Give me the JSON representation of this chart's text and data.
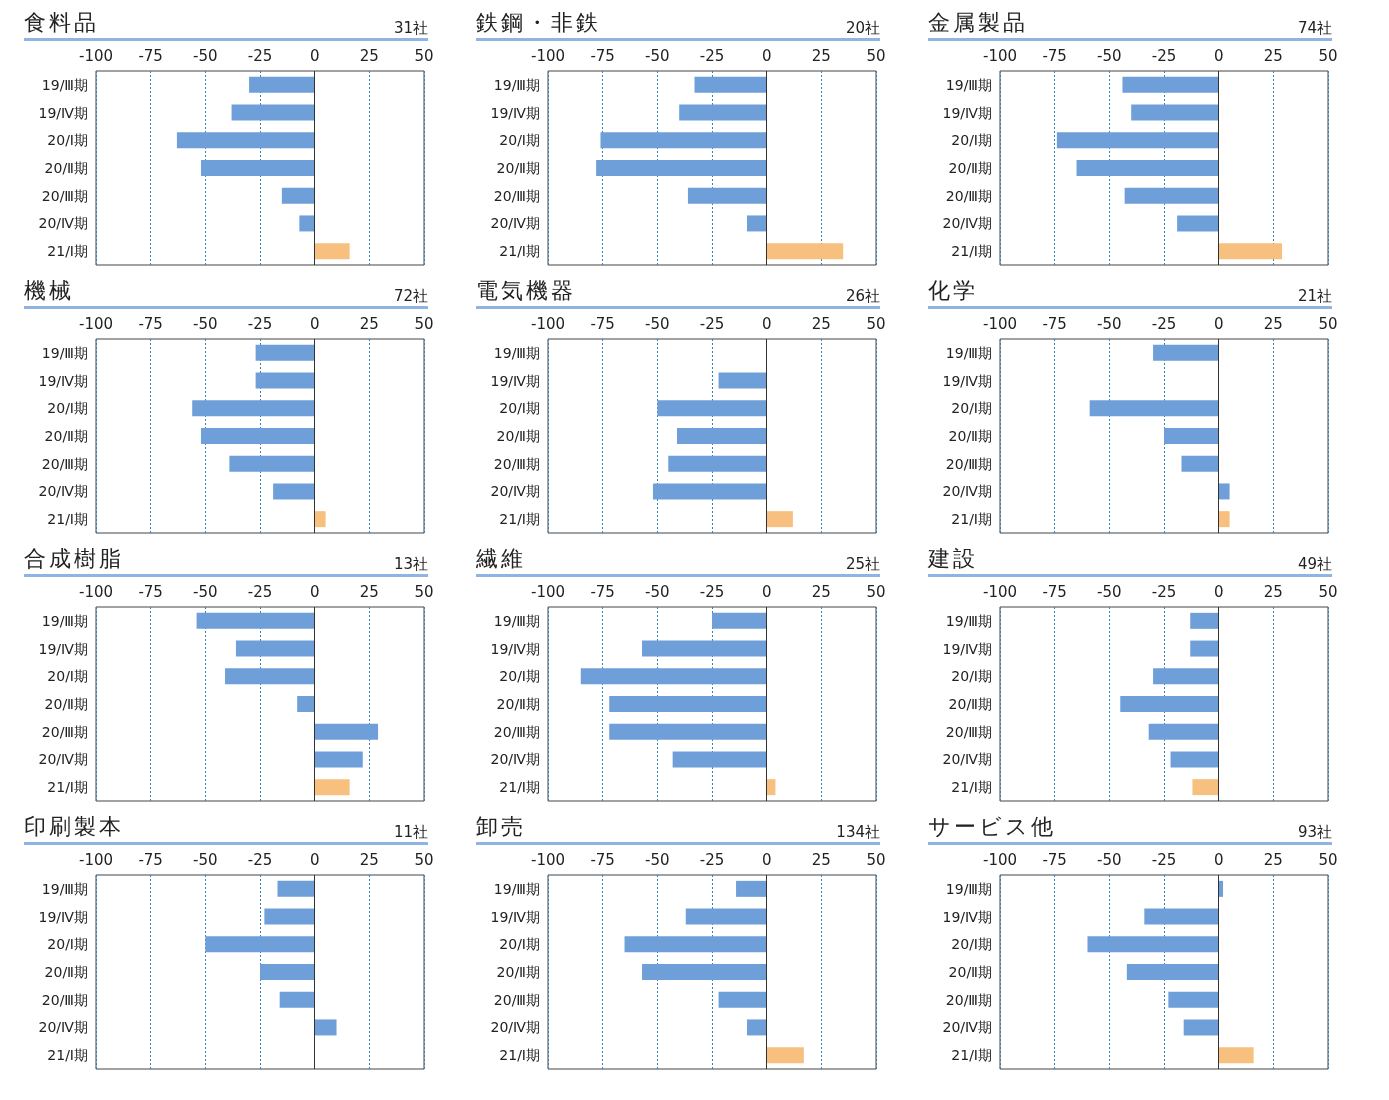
{
  "chart_data": [
    {
      "type": "bar",
      "orientation": "horizontal",
      "title": "食料品",
      "subtitle": "31社",
      "categories": [
        "19/Ⅲ期",
        "19/Ⅳ期",
        "20/Ⅰ期",
        "20/Ⅱ期",
        "20/Ⅲ期",
        "20/Ⅳ期",
        "21/Ⅰ期"
      ],
      "values": [
        -30,
        -38,
        -63,
        -52,
        -15,
        -7,
        16
      ],
      "colors": [
        "#6f9fd8",
        "#6f9fd8",
        "#6f9fd8",
        "#6f9fd8",
        "#6f9fd8",
        "#6f9fd8",
        "#f7c07f"
      ],
      "xlim": [
        -100,
        50
      ],
      "xticks": [
        -100,
        -75,
        -50,
        -25,
        0,
        25,
        50
      ],
      "grid": "x",
      "ref_lines": [
        {
          "axis": "x",
          "value": 0,
          "color": "#333333"
        }
      ]
    },
    {
      "type": "bar",
      "orientation": "horizontal",
      "title": "鉄鋼・非鉄",
      "subtitle": "20社",
      "categories": [
        "19/Ⅲ期",
        "19/Ⅳ期",
        "20/Ⅰ期",
        "20/Ⅱ期",
        "20/Ⅲ期",
        "20/Ⅳ期",
        "21/Ⅰ期"
      ],
      "values": [
        -33,
        -40,
        -76,
        -78,
        -36,
        -9,
        35
      ],
      "colors": [
        "#6f9fd8",
        "#6f9fd8",
        "#6f9fd8",
        "#6f9fd8",
        "#6f9fd8",
        "#6f9fd8",
        "#f7c07f"
      ],
      "xlim": [
        -100,
        50
      ],
      "xticks": [
        -100,
        -75,
        -50,
        -25,
        0,
        25,
        50
      ],
      "grid": "x",
      "ref_lines": [
        {
          "axis": "x",
          "value": 0,
          "color": "#333333"
        }
      ]
    },
    {
      "type": "bar",
      "orientation": "horizontal",
      "title": "金属製品",
      "subtitle": "74社",
      "categories": [
        "19/Ⅲ期",
        "19/Ⅳ期",
        "20/Ⅰ期",
        "20/Ⅱ期",
        "20/Ⅲ期",
        "20/Ⅳ期",
        "21/Ⅰ期"
      ],
      "values": [
        -44,
        -40,
        -74,
        -65,
        -43,
        -19,
        29
      ],
      "colors": [
        "#6f9fd8",
        "#6f9fd8",
        "#6f9fd8",
        "#6f9fd8",
        "#6f9fd8",
        "#6f9fd8",
        "#f7c07f"
      ],
      "xlim": [
        -100,
        50
      ],
      "xticks": [
        -100,
        -75,
        -50,
        -25,
        0,
        25,
        50
      ],
      "grid": "x",
      "ref_lines": [
        {
          "axis": "x",
          "value": 0,
          "color": "#333333"
        }
      ]
    },
    {
      "type": "bar",
      "orientation": "horizontal",
      "title": "機械",
      "subtitle": "72社",
      "categories": [
        "19/Ⅲ期",
        "19/Ⅳ期",
        "20/Ⅰ期",
        "20/Ⅱ期",
        "20/Ⅲ期",
        "20/Ⅳ期",
        "21/Ⅰ期"
      ],
      "values": [
        -27,
        -27,
        -56,
        -52,
        -39,
        -19,
        5
      ],
      "colors": [
        "#6f9fd8",
        "#6f9fd8",
        "#6f9fd8",
        "#6f9fd8",
        "#6f9fd8",
        "#6f9fd8",
        "#f7c07f"
      ],
      "xlim": [
        -100,
        50
      ],
      "xticks": [
        -100,
        -75,
        -50,
        -25,
        0,
        25,
        50
      ],
      "grid": "x",
      "ref_lines": [
        {
          "axis": "x",
          "value": 0,
          "color": "#333333"
        }
      ]
    },
    {
      "type": "bar",
      "orientation": "horizontal",
      "title": "電気機器",
      "subtitle": "26社",
      "categories": [
        "19/Ⅲ期",
        "19/Ⅳ期",
        "20/Ⅰ期",
        "20/Ⅱ期",
        "20/Ⅲ期",
        "20/Ⅳ期",
        "21/Ⅰ期"
      ],
      "values": [
        0,
        -22,
        -50,
        -41,
        -45,
        -52,
        12
      ],
      "colors": [
        "#6f9fd8",
        "#6f9fd8",
        "#6f9fd8",
        "#6f9fd8",
        "#6f9fd8",
        "#6f9fd8",
        "#f7c07f"
      ],
      "xlim": [
        -100,
        50
      ],
      "xticks": [
        -100,
        -75,
        -50,
        -25,
        0,
        25,
        50
      ],
      "grid": "x",
      "ref_lines": [
        {
          "axis": "x",
          "value": 0,
          "color": "#333333"
        }
      ]
    },
    {
      "type": "bar",
      "orientation": "horizontal",
      "title": "化学",
      "subtitle": "21社",
      "categories": [
        "19/Ⅲ期",
        "19/Ⅳ期",
        "20/Ⅰ期",
        "20/Ⅱ期",
        "20/Ⅲ期",
        "20/Ⅳ期",
        "21/Ⅰ期"
      ],
      "values": [
        -30,
        0,
        -59,
        -25,
        -17,
        5,
        5
      ],
      "colors": [
        "#6f9fd8",
        "#6f9fd8",
        "#6f9fd8",
        "#6f9fd8",
        "#6f9fd8",
        "#6f9fd8",
        "#f7c07f"
      ],
      "xlim": [
        -100,
        50
      ],
      "xticks": [
        -100,
        -75,
        -50,
        -25,
        0,
        25,
        50
      ],
      "grid": "x",
      "ref_lines": [
        {
          "axis": "x",
          "value": 0,
          "color": "#333333"
        }
      ]
    },
    {
      "type": "bar",
      "orientation": "horizontal",
      "title": "合成樹脂",
      "subtitle": "13社",
      "categories": [
        "19/Ⅲ期",
        "19/Ⅳ期",
        "20/Ⅰ期",
        "20/Ⅱ期",
        "20/Ⅲ期",
        "20/Ⅳ期",
        "21/Ⅰ期"
      ],
      "values": [
        -54,
        -36,
        -41,
        -8,
        29,
        22,
        16
      ],
      "colors": [
        "#6f9fd8",
        "#6f9fd8",
        "#6f9fd8",
        "#6f9fd8",
        "#6f9fd8",
        "#6f9fd8",
        "#f7c07f"
      ],
      "xlim": [
        -100,
        50
      ],
      "xticks": [
        -100,
        -75,
        -50,
        -25,
        0,
        25,
        50
      ],
      "grid": "x",
      "ref_lines": [
        {
          "axis": "x",
          "value": 0,
          "color": "#333333"
        }
      ]
    },
    {
      "type": "bar",
      "orientation": "horizontal",
      "title": "繊維",
      "subtitle": "25社",
      "categories": [
        "19/Ⅲ期",
        "19/Ⅳ期",
        "20/Ⅰ期",
        "20/Ⅱ期",
        "20/Ⅲ期",
        "20/Ⅳ期",
        "21/Ⅰ期"
      ],
      "values": [
        -25,
        -57,
        -85,
        -72,
        -72,
        -43,
        4
      ],
      "colors": [
        "#6f9fd8",
        "#6f9fd8",
        "#6f9fd8",
        "#6f9fd8",
        "#6f9fd8",
        "#6f9fd8",
        "#f7c07f"
      ],
      "xlim": [
        -100,
        50
      ],
      "xticks": [
        -100,
        -75,
        -50,
        -25,
        0,
        25,
        50
      ],
      "grid": "x",
      "ref_lines": [
        {
          "axis": "x",
          "value": 0,
          "color": "#333333"
        }
      ]
    },
    {
      "type": "bar",
      "orientation": "horizontal",
      "title": "建設",
      "subtitle": "49社",
      "categories": [
        "19/Ⅲ期",
        "19/Ⅳ期",
        "20/Ⅰ期",
        "20/Ⅱ期",
        "20/Ⅲ期",
        "20/Ⅳ期",
        "21/Ⅰ期"
      ],
      "values": [
        -13,
        -13,
        -30,
        -45,
        -32,
        -22,
        -12
      ],
      "colors": [
        "#6f9fd8",
        "#6f9fd8",
        "#6f9fd8",
        "#6f9fd8",
        "#6f9fd8",
        "#6f9fd8",
        "#f7c07f"
      ],
      "xlim": [
        -100,
        50
      ],
      "xticks": [
        -100,
        -75,
        -50,
        -25,
        0,
        25,
        50
      ],
      "grid": "x",
      "ref_lines": [
        {
          "axis": "x",
          "value": 0,
          "color": "#333333"
        }
      ]
    },
    {
      "type": "bar",
      "orientation": "horizontal",
      "title": "印刷製本",
      "subtitle": "11社",
      "categories": [
        "19/Ⅲ期",
        "19/Ⅳ期",
        "20/Ⅰ期",
        "20/Ⅱ期",
        "20/Ⅲ期",
        "20/Ⅳ期",
        "21/Ⅰ期"
      ],
      "values": [
        -17,
        -23,
        -50,
        -25,
        -16,
        10,
        0
      ],
      "colors": [
        "#6f9fd8",
        "#6f9fd8",
        "#6f9fd8",
        "#6f9fd8",
        "#6f9fd8",
        "#6f9fd8",
        "#f7c07f"
      ],
      "xlim": [
        -100,
        50
      ],
      "xticks": [
        -100,
        -75,
        -50,
        -25,
        0,
        25,
        50
      ],
      "grid": "x",
      "ref_lines": [
        {
          "axis": "x",
          "value": 0,
          "color": "#333333"
        }
      ]
    },
    {
      "type": "bar",
      "orientation": "horizontal",
      "title": "卸売",
      "subtitle": "134社",
      "categories": [
        "19/Ⅲ期",
        "19/Ⅳ期",
        "20/Ⅰ期",
        "20/Ⅱ期",
        "20/Ⅲ期",
        "20/Ⅳ期",
        "21/Ⅰ期"
      ],
      "values": [
        -14,
        -37,
        -65,
        -57,
        -22,
        -9,
        17
      ],
      "colors": [
        "#6f9fd8",
        "#6f9fd8",
        "#6f9fd8",
        "#6f9fd8",
        "#6f9fd8",
        "#6f9fd8",
        "#f7c07f"
      ],
      "xlim": [
        -100,
        50
      ],
      "xticks": [
        -100,
        -75,
        -50,
        -25,
        0,
        25,
        50
      ],
      "grid": "x",
      "ref_lines": [
        {
          "axis": "x",
          "value": 0,
          "color": "#333333"
        }
      ]
    },
    {
      "type": "bar",
      "orientation": "horizontal",
      "title": "サービス他",
      "subtitle": "93社",
      "categories": [
        "19/Ⅲ期",
        "19/Ⅳ期",
        "20/Ⅰ期",
        "20/Ⅱ期",
        "20/Ⅲ期",
        "20/Ⅳ期",
        "21/Ⅰ期"
      ],
      "values": [
        2,
        -34,
        -60,
        -42,
        -23,
        -16,
        16
      ],
      "colors": [
        "#6f9fd8",
        "#6f9fd8",
        "#6f9fd8",
        "#6f9fd8",
        "#6f9fd8",
        "#6f9fd8",
        "#f7c07f"
      ],
      "xlim": [
        -100,
        50
      ],
      "xticks": [
        -100,
        -75,
        -50,
        -25,
        0,
        25,
        50
      ],
      "grid": "x",
      "ref_lines": [
        {
          "axis": "x",
          "value": 0,
          "color": "#333333"
        }
      ]
    }
  ]
}
